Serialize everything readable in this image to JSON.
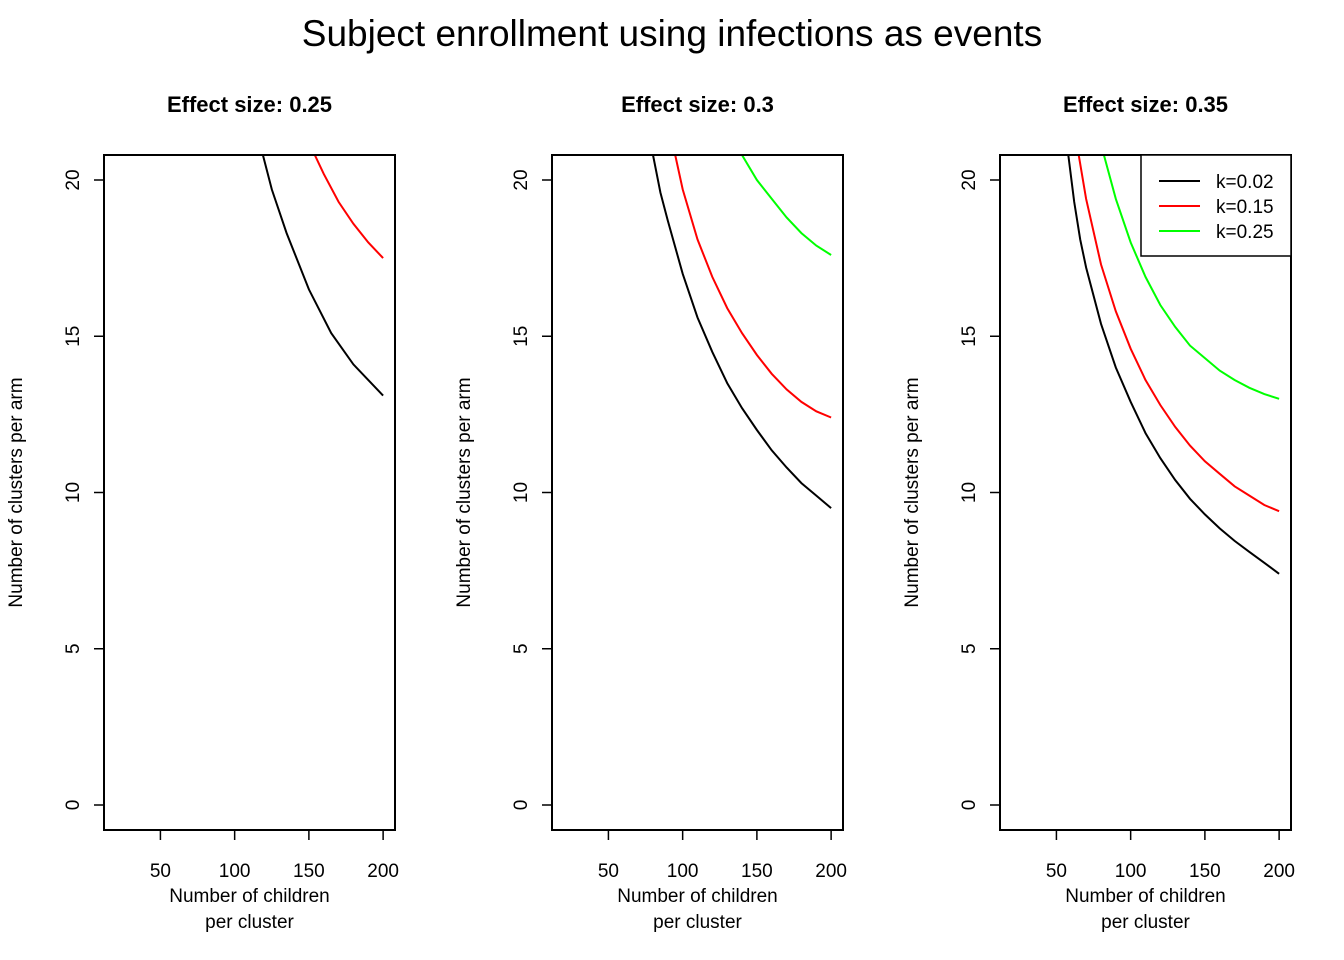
{
  "title": "Subject enrollment using infections as events",
  "chart_data": [
    {
      "type": "line",
      "title": "Effect size: 0.25",
      "xlabel": [
        "Number of children",
        "per cluster"
      ],
      "ylabel": "Number of clusters per arm",
      "xlim": [
        12,
        208
      ],
      "ylim": [
        -0.8,
        20.8
      ],
      "xticks": [
        50,
        100,
        150,
        200
      ],
      "yticks": [
        0,
        5,
        10,
        15,
        20
      ],
      "series": [
        {
          "name": "k=0.02",
          "color": "#000000",
          "x": [
            119,
            125,
            135,
            150,
            165,
            180,
            200
          ],
          "y": [
            20.8,
            19.7,
            18.3,
            16.5,
            15.1,
            14.1,
            13.1
          ]
        },
        {
          "name": "k=0.15",
          "color": "#ff0000",
          "x": [
            154,
            160,
            170,
            180,
            190,
            200
          ],
          "y": [
            20.8,
            20.2,
            19.3,
            18.6,
            18.0,
            17.5
          ]
        }
      ]
    },
    {
      "type": "line",
      "title": "Effect size: 0.3",
      "xlabel": [
        "Number of children",
        "per cluster"
      ],
      "ylabel": "Number of clusters per arm",
      "xlim": [
        12,
        208
      ],
      "ylim": [
        -0.8,
        20.8
      ],
      "xticks": [
        50,
        100,
        150,
        200
      ],
      "yticks": [
        0,
        5,
        10,
        15,
        20
      ],
      "series": [
        {
          "name": "k=0.02",
          "color": "#000000",
          "x": [
            80,
            85,
            90,
            100,
            110,
            120,
            130,
            140,
            150,
            160,
            170,
            180,
            190,
            200
          ],
          "y": [
            20.8,
            19.6,
            18.7,
            17.0,
            15.6,
            14.5,
            13.5,
            12.7,
            12.0,
            11.35,
            10.8,
            10.3,
            9.9,
            9.5
          ]
        },
        {
          "name": "k=0.15",
          "color": "#ff0000",
          "x": [
            95,
            100,
            110,
            120,
            130,
            140,
            150,
            160,
            170,
            180,
            190,
            200
          ],
          "y": [
            20.8,
            19.7,
            18.1,
            16.9,
            15.9,
            15.1,
            14.4,
            13.8,
            13.3,
            12.9,
            12.6,
            12.4
          ]
        },
        {
          "name": "k=0.25",
          "color": "#00ff00",
          "x": [
            140,
            150,
            160,
            170,
            180,
            190,
            200
          ],
          "y": [
            20.8,
            20.0,
            19.4,
            18.8,
            18.3,
            17.9,
            17.6
          ]
        }
      ]
    },
    {
      "type": "line",
      "title": "Effect size: 0.35",
      "xlabel": [
        "Number of children",
        "per cluster"
      ],
      "ylabel": "Number of clusters per arm",
      "xlim": [
        12,
        208
      ],
      "ylim": [
        -0.8,
        20.8
      ],
      "xticks": [
        50,
        100,
        150,
        200
      ],
      "yticks": [
        0,
        5,
        10,
        15,
        20
      ],
      "legend": {
        "position": "top-right",
        "entries": [
          "k=0.02",
          "k=0.15",
          "k=0.25"
        ]
      },
      "series": [
        {
          "name": "k=0.02",
          "color": "#000000",
          "x": [
            58,
            62,
            66,
            70,
            80,
            90,
            100,
            110,
            120,
            130,
            140,
            150,
            160,
            170,
            180,
            190,
            200
          ],
          "y": [
            20.8,
            19.3,
            18.1,
            17.2,
            15.4,
            14.0,
            12.9,
            11.9,
            11.1,
            10.4,
            9.8,
            9.3,
            8.85,
            8.45,
            8.1,
            7.75,
            7.4
          ]
        },
        {
          "name": "k=0.15",
          "color": "#ff0000",
          "x": [
            65,
            70,
            80,
            90,
            100,
            110,
            120,
            130,
            140,
            150,
            160,
            170,
            180,
            190,
            200
          ],
          "y": [
            20.8,
            19.4,
            17.3,
            15.8,
            14.6,
            13.6,
            12.8,
            12.1,
            11.5,
            11.0,
            10.6,
            10.2,
            9.9,
            9.6,
            9.4
          ]
        },
        {
          "name": "k=0.25",
          "color": "#00ff00",
          "x": [
            82,
            90,
            100,
            110,
            120,
            130,
            140,
            150,
            160,
            170,
            180,
            190,
            200
          ],
          "y": [
            20.8,
            19.4,
            18.0,
            16.9,
            16.0,
            15.3,
            14.7,
            14.3,
            13.9,
            13.6,
            13.35,
            13.15,
            13.0
          ]
        }
      ]
    }
  ]
}
